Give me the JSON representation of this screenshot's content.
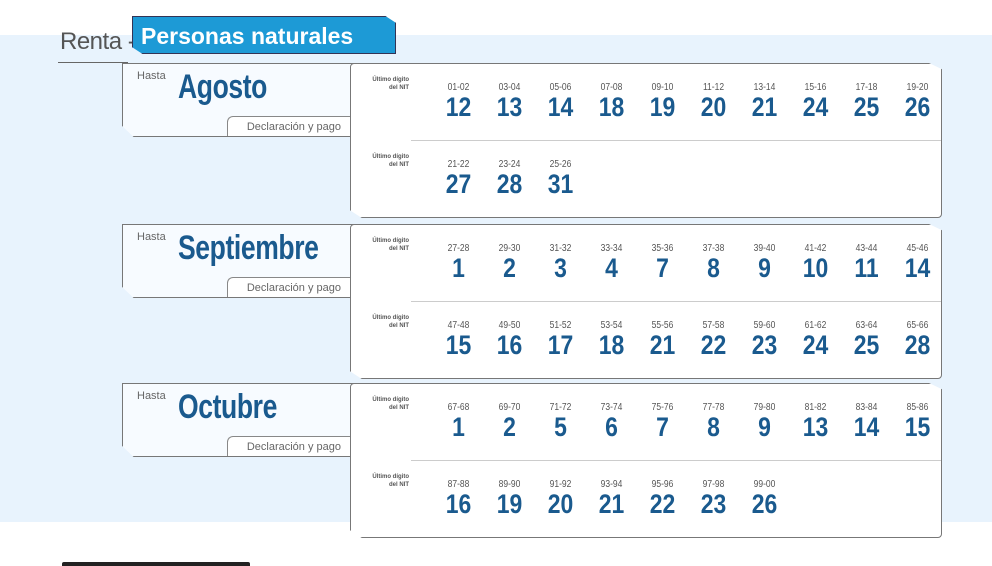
{
  "header": {
    "title_prefix": "Renta -",
    "title_tab": "Personas naturales"
  },
  "common": {
    "hasta": "Hasta",
    "declaracion": "Declaración y pago",
    "nit_label_line1": "Último dígito",
    "nit_label_line2": "del NIT"
  },
  "sections": [
    {
      "month": "Agosto",
      "rows": [
        [
          [
            "01-02",
            "12"
          ],
          [
            "03-04",
            "13"
          ],
          [
            "05-06",
            "14"
          ],
          [
            "07-08",
            "18"
          ],
          [
            "09-10",
            "19"
          ],
          [
            "11-12",
            "20"
          ],
          [
            "13-14",
            "21"
          ],
          [
            "15-16",
            "24"
          ],
          [
            "17-18",
            "25"
          ],
          [
            "19-20",
            "26"
          ]
        ],
        [
          [
            "21-22",
            "27"
          ],
          [
            "23-24",
            "28"
          ],
          [
            "25-26",
            "31"
          ]
        ]
      ]
    },
    {
      "month": "Septiembre",
      "rows": [
        [
          [
            "27-28",
            "1"
          ],
          [
            "29-30",
            "2"
          ],
          [
            "31-32",
            "3"
          ],
          [
            "33-34",
            "4"
          ],
          [
            "35-36",
            "7"
          ],
          [
            "37-38",
            "8"
          ],
          [
            "39-40",
            "9"
          ],
          [
            "41-42",
            "10"
          ],
          [
            "43-44",
            "11"
          ],
          [
            "45-46",
            "14"
          ]
        ],
        [
          [
            "47-48",
            "15"
          ],
          [
            "49-50",
            "16"
          ],
          [
            "51-52",
            "17"
          ],
          [
            "53-54",
            "18"
          ],
          [
            "55-56",
            "21"
          ],
          [
            "57-58",
            "22"
          ],
          [
            "59-60",
            "23"
          ],
          [
            "61-62",
            "24"
          ],
          [
            "63-64",
            "25"
          ],
          [
            "65-66",
            "28"
          ]
        ]
      ]
    },
    {
      "month": "Octubre",
      "rows": [
        [
          [
            "67-68",
            "1"
          ],
          [
            "69-70",
            "2"
          ],
          [
            "71-72",
            "5"
          ],
          [
            "73-74",
            "6"
          ],
          [
            "75-76",
            "7"
          ],
          [
            "77-78",
            "8"
          ],
          [
            "79-80",
            "9"
          ],
          [
            "81-82",
            "13"
          ],
          [
            "83-84",
            "14"
          ],
          [
            "85-86",
            "15"
          ]
        ],
        [
          [
            "87-88",
            "16"
          ],
          [
            "89-90",
            "19"
          ],
          [
            "91-92",
            "20"
          ],
          [
            "93-94",
            "21"
          ],
          [
            "95-96",
            "22"
          ],
          [
            "97-98",
            "23"
          ],
          [
            "99-00",
            "26"
          ]
        ]
      ]
    }
  ],
  "colors": {
    "accent": "#1d9ad6",
    "number": "#1a5a8e",
    "background": "#e8f3fd"
  }
}
